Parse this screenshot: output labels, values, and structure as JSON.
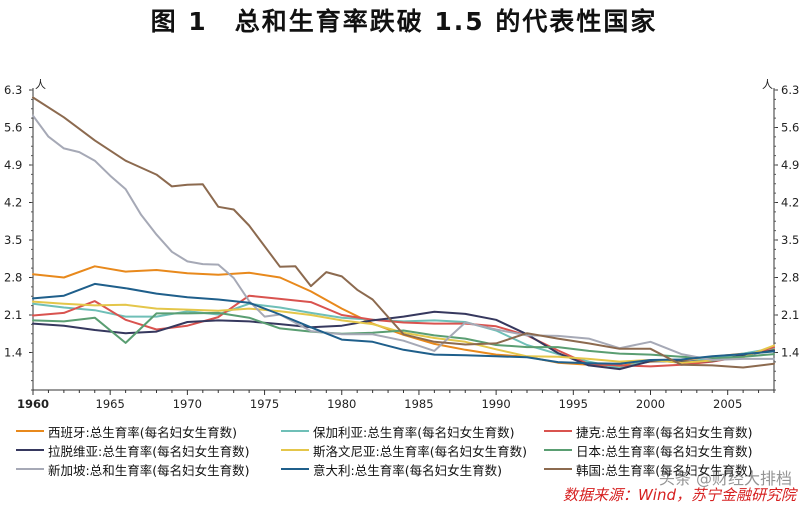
{
  "figure_title": "图 1　总和生育率跌破 1.5 的代表性国家",
  "source_note": "数据来源：Wind，苏宁金融研究院",
  "watermark": "头条 @财经大排档",
  "chart_data": {
    "type": "line",
    "title": "图 1　总和生育率跌破 1.5 的代表性国家",
    "xlabel": "",
    "ylabel_left": "人",
    "ylabel_right": "人",
    "xlim": [
      1960,
      2008
    ],
    "ylim": [
      0.7,
      6.3
    ],
    "x_ticks": [
      "1960",
      "1965",
      "1970",
      "1975",
      "1980",
      "1985",
      "1990",
      "1995",
      "2000",
      "2005"
    ],
    "y_ticks": [
      "1.4",
      "2.1",
      "2.8",
      "3.5",
      "4.2",
      "4.9",
      "5.6",
      "6.3"
    ],
    "y_tick_values": [
      1.4,
      2.1,
      2.8,
      3.5,
      4.2,
      4.9,
      5.6,
      6.3
    ],
    "legend_position": "bottom",
    "grid": false,
    "series": [
      {
        "name": "西班牙:总生育率(每名妇女生育数)",
        "color": "#e8891c",
        "x": [
          1960,
          1962,
          1964,
          1966,
          1968,
          1970,
          1972,
          1974,
          1976,
          1978,
          1980,
          1982,
          1984,
          1986,
          1988,
          1990,
          1992,
          1994,
          1996,
          1998,
          2000,
          2002,
          2004,
          2006,
          2008
        ],
        "y": [
          2.86,
          2.8,
          3.01,
          2.91,
          2.94,
          2.88,
          2.85,
          2.89,
          2.8,
          2.54,
          2.22,
          1.94,
          1.73,
          1.56,
          1.45,
          1.36,
          1.32,
          1.21,
          1.17,
          1.15,
          1.23,
          1.26,
          1.32,
          1.38,
          1.46
        ]
      },
      {
        "name": "保加利亚:总生育率(每名妇女生育数)",
        "color": "#6fbfb7",
        "x": [
          1960,
          1962,
          1964,
          1966,
          1968,
          1970,
          1972,
          1974,
          1976,
          1978,
          1980,
          1982,
          1984,
          1986,
          1988,
          1990,
          1992,
          1994,
          1996,
          1998,
          2000,
          2002,
          2004,
          2006,
          2008
        ],
        "y": [
          2.31,
          2.24,
          2.19,
          2.07,
          2.07,
          2.17,
          2.11,
          2.31,
          2.24,
          2.14,
          2.05,
          2.01,
          1.98,
          2.0,
          1.97,
          1.81,
          1.54,
          1.37,
          1.23,
          1.11,
          1.26,
          1.21,
          1.29,
          1.38,
          1.48
        ]
      },
      {
        "name": "捷克:总生育率(每名妇女生育数)",
        "color": "#d9534f",
        "x": [
          1960,
          1962,
          1964,
          1966,
          1968,
          1970,
          1972,
          1974,
          1976,
          1978,
          1980,
          1982,
          1984,
          1986,
          1988,
          1990,
          1992,
          1994,
          1996,
          1998,
          2000,
          2002,
          2004,
          2006,
          2008
        ],
        "y": [
          2.09,
          2.14,
          2.36,
          2.01,
          1.83,
          1.9,
          2.06,
          2.46,
          2.4,
          2.34,
          2.1,
          2.01,
          1.96,
          1.94,
          1.94,
          1.89,
          1.72,
          1.44,
          1.18,
          1.16,
          1.14,
          1.17,
          1.23,
          1.33,
          1.5
        ]
      },
      {
        "name": "拉脱维亚:总生育率(每名妇女生育数)",
        "color": "#36385e",
        "x": [
          1960,
          1962,
          1964,
          1966,
          1968,
          1970,
          1972,
          1974,
          1976,
          1978,
          1980,
          1982,
          1984,
          1986,
          1988,
          1990,
          1992,
          1994,
          1996,
          1998,
          2000,
          2002,
          2004,
          2006,
          2008
        ],
        "y": [
          1.94,
          1.9,
          1.82,
          1.76,
          1.79,
          1.97,
          2.0,
          1.98,
          1.93,
          1.87,
          1.9,
          2.0,
          2.07,
          2.16,
          2.12,
          2.01,
          1.74,
          1.39,
          1.16,
          1.09,
          1.24,
          1.23,
          1.24,
          1.35,
          1.44
        ]
      },
      {
        "name": "斯洛文尼亚:总生育率(每名妇女生育数)",
        "color": "#e4c64a",
        "x": [
          1960,
          1962,
          1964,
          1966,
          1968,
          1970,
          1972,
          1974,
          1976,
          1978,
          1980,
          1982,
          1984,
          1986,
          1988,
          1990,
          1992,
          1994,
          1996,
          1998,
          2000,
          2002,
          2004,
          2006,
          2008
        ],
        "y": [
          2.35,
          2.31,
          2.28,
          2.29,
          2.22,
          2.2,
          2.18,
          2.22,
          2.17,
          2.1,
          2.0,
          1.93,
          1.77,
          1.67,
          1.6,
          1.46,
          1.33,
          1.32,
          1.28,
          1.23,
          1.26,
          1.21,
          1.25,
          1.31,
          1.53
        ]
      },
      {
        "name": "日本:总生育率(每名妇女生育数)",
        "color": "#5a9e72",
        "x": [
          1960,
          1962,
          1964,
          1966,
          1968,
          1970,
          1972,
          1974,
          1976,
          1978,
          1980,
          1982,
          1984,
          1986,
          1988,
          1990,
          1992,
          1994,
          1996,
          1998,
          2000,
          2002,
          2004,
          2006,
          2008
        ],
        "y": [
          2.0,
          1.98,
          2.05,
          1.58,
          2.13,
          2.13,
          2.14,
          2.05,
          1.85,
          1.79,
          1.75,
          1.77,
          1.81,
          1.72,
          1.66,
          1.54,
          1.5,
          1.5,
          1.43,
          1.38,
          1.36,
          1.32,
          1.29,
          1.32,
          1.37
        ]
      },
      {
        "name": "新加坡:总和生育率(每名妇女生育数)",
        "color": "#a6a9b6",
        "x": [
          1960,
          1961,
          1962,
          1963,
          1964,
          1965,
          1966,
          1967,
          1968,
          1969,
          1970,
          1971,
          1972,
          1973,
          1974,
          1975,
          1976,
          1978,
          1980,
          1982,
          1984,
          1986,
          1988,
          1990,
          1992,
          1994,
          1996,
          1998,
          2000,
          2002,
          2004,
          2006,
          2008
        ],
        "y": [
          5.82,
          5.43,
          5.21,
          5.14,
          4.98,
          4.7,
          4.45,
          3.97,
          3.6,
          3.28,
          3.1,
          3.05,
          3.04,
          2.79,
          2.36,
          2.07,
          2.11,
          1.8,
          1.74,
          1.74,
          1.62,
          1.43,
          1.96,
          1.83,
          1.72,
          1.71,
          1.66,
          1.48,
          1.6,
          1.37,
          1.26,
          1.28,
          1.28
        ]
      },
      {
        "name": "意大利:总生育率(每名妇女生育数)",
        "color": "#1f5f8b",
        "x": [
          1960,
          1962,
          1964,
          1966,
          1968,
          1970,
          1972,
          1974,
          1976,
          1978,
          1980,
          1982,
          1984,
          1986,
          1988,
          1990,
          1992,
          1994,
          1996,
          1998,
          2000,
          2002,
          2004,
          2006,
          2008
        ],
        "y": [
          2.41,
          2.46,
          2.68,
          2.6,
          2.5,
          2.43,
          2.39,
          2.33,
          2.11,
          1.87,
          1.64,
          1.6,
          1.45,
          1.36,
          1.35,
          1.33,
          1.31,
          1.22,
          1.2,
          1.19,
          1.26,
          1.27,
          1.33,
          1.37,
          1.42
        ]
      },
      {
        "name": "韩国:总生育率(每名妇女生育数)",
        "color": "#8c6a4f",
        "x": [
          1960,
          1962,
          1964,
          1966,
          1968,
          1969,
          1970,
          1971,
          1972,
          1973,
          1974,
          1976,
          1977,
          1978,
          1979,
          1980,
          1981,
          1982,
          1984,
          1986,
          1988,
          1990,
          1992,
          1994,
          1996,
          1998,
          2000,
          2002,
          2004,
          2006,
          2008
        ],
        "y": [
          6.16,
          5.79,
          5.36,
          4.98,
          4.72,
          4.5,
          4.53,
          4.54,
          4.12,
          4.07,
          3.77,
          3.0,
          3.01,
          2.64,
          2.9,
          2.82,
          2.57,
          2.39,
          1.74,
          1.6,
          1.55,
          1.57,
          1.76,
          1.66,
          1.57,
          1.47,
          1.47,
          1.17,
          1.16,
          1.12,
          1.19
        ]
      }
    ]
  }
}
